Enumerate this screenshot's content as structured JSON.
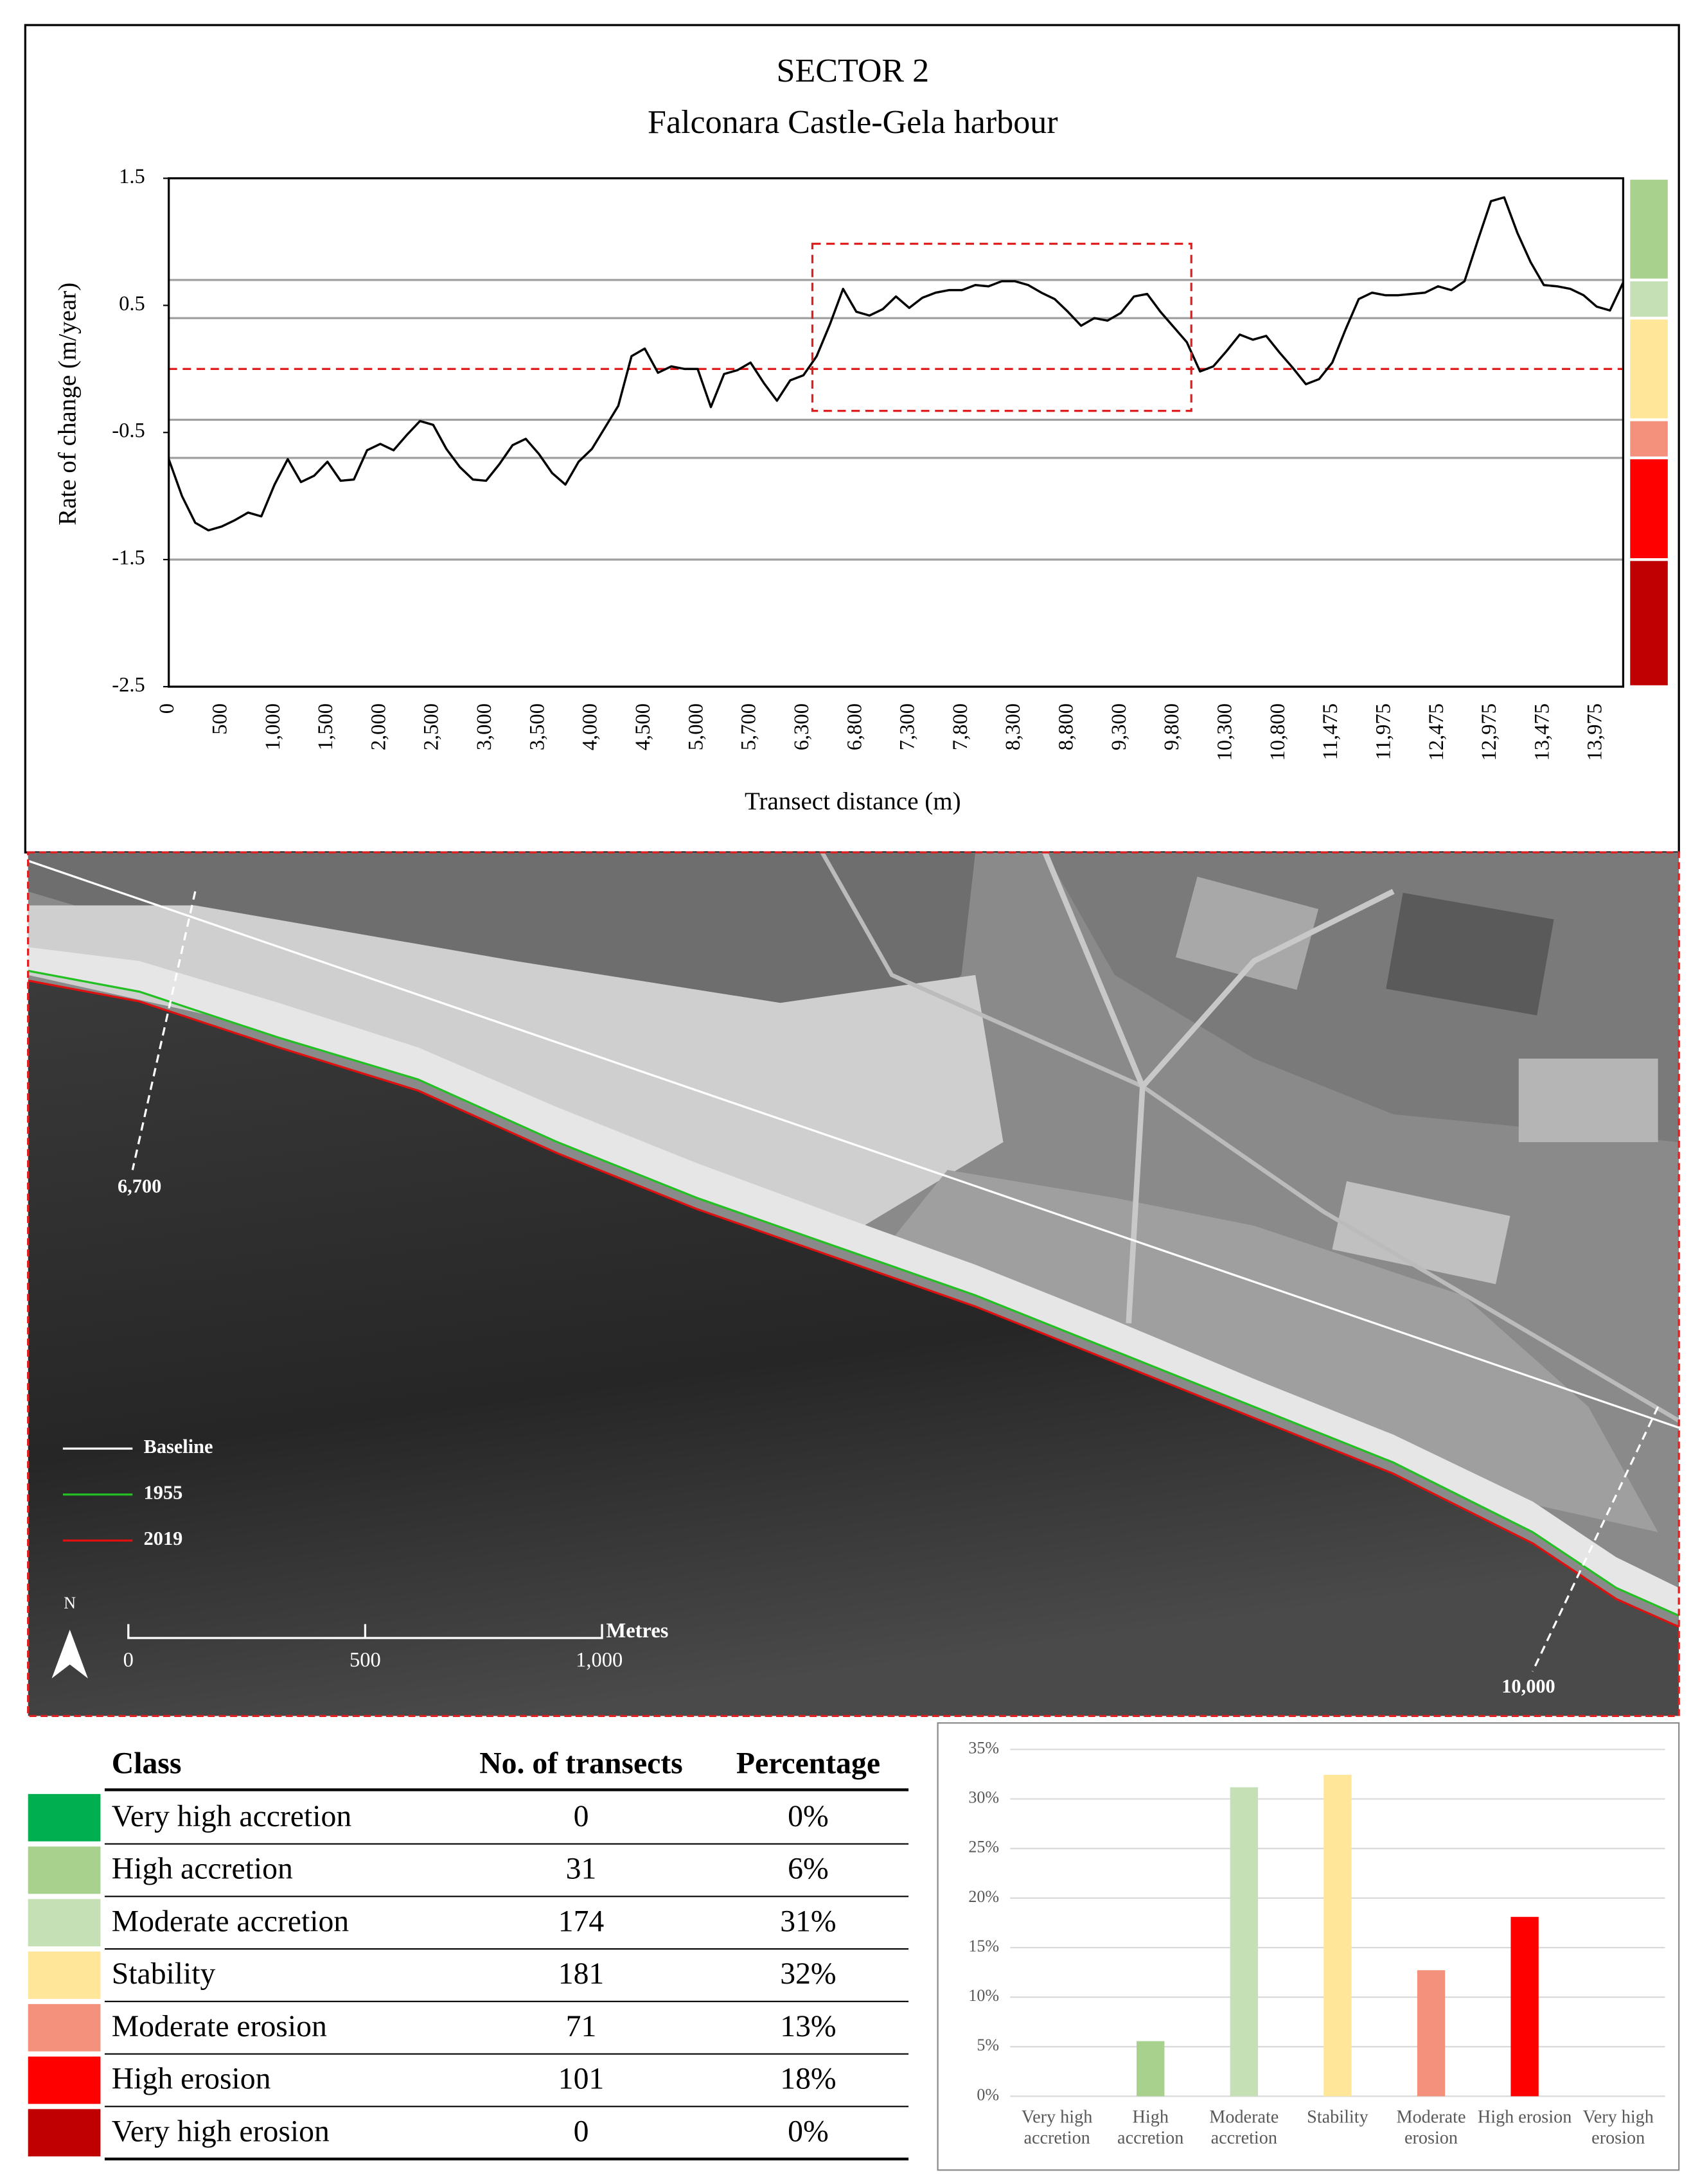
{
  "chart_data": [
    {
      "type": "line",
      "title": "SECTOR 2",
      "subtitle": "Falconara Castle-Gela harbour",
      "x_label": "Transect distance (m)",
      "y_label": "Rate of change (m/year)",
      "categories": [
        "0",
        null,
        null,
        null,
        "500",
        null,
        null,
        null,
        "1,000",
        null,
        null,
        null,
        "1,500",
        null,
        null,
        null,
        "2,000",
        null,
        null,
        null,
        "2,500",
        null,
        null,
        null,
        "3,000",
        null,
        null,
        null,
        "3,500",
        null,
        null,
        null,
        "4,000",
        null,
        null,
        null,
        "4,500",
        null,
        null,
        null,
        "5,000",
        null,
        null,
        null,
        "5,700",
        null,
        null,
        null,
        "6,300",
        null,
        null,
        null,
        "6,800",
        null,
        null,
        null,
        "7,300",
        null,
        null,
        null,
        "7,800",
        null,
        null,
        null,
        "8,300",
        null,
        null,
        null,
        "8,800",
        null,
        null,
        null,
        "9,300",
        null,
        null,
        null,
        "9,800",
        null,
        null,
        null,
        "10,300",
        null,
        null,
        null,
        "10,800",
        null,
        null,
        null,
        "11,475",
        null,
        null,
        null,
        "11,975",
        null,
        null,
        null,
        "12,475",
        null,
        null,
        null,
        "12,975",
        null,
        null,
        null,
        "13,475",
        null,
        null,
        null,
        "13,975",
        null,
        null
      ],
      "values": [
        -0.71,
        -1.0,
        -1.21,
        -1.27,
        -1.24,
        -1.19,
        -1.13,
        -1.16,
        -0.91,
        -0.71,
        -0.89,
        -0.84,
        -0.73,
        -0.88,
        -0.87,
        -0.64,
        -0.59,
        -0.64,
        -0.52,
        -0.41,
        -0.44,
        -0.63,
        -0.77,
        -0.87,
        -0.88,
        -0.75,
        -0.6,
        -0.55,
        -0.67,
        -0.82,
        -0.91,
        -0.73,
        -0.63,
        -0.46,
        -0.29,
        0.1,
        0.16,
        -0.03,
        0.02,
        0.0,
        0.0,
        -0.3,
        -0.04,
        -0.01,
        0.05,
        -0.11,
        -0.25,
        -0.09,
        -0.05,
        0.1,
        0.35,
        0.63,
        0.45,
        0.42,
        0.47,
        0.57,
        0.48,
        0.56,
        0.6,
        0.62,
        0.62,
        0.66,
        0.65,
        0.69,
        0.69,
        0.66,
        0.6,
        0.55,
        0.45,
        0.34,
        0.4,
        0.38,
        0.44,
        0.57,
        0.59,
        0.45,
        0.33,
        0.21,
        -0.02,
        0.02,
        0.14,
        0.27,
        0.23,
        0.26,
        0.13,
        0.01,
        -0.12,
        -0.08,
        0.05,
        0.31,
        0.55,
        0.6,
        0.58,
        0.58,
        0.59,
        0.6,
        0.65,
        0.62,
        0.69,
        1.01,
        1.32,
        1.35,
        1.07,
        0.84,
        0.66,
        0.65,
        0.63,
        0.58,
        0.49,
        0.46,
        0.68
      ],
      "color": "#000000",
      "ylim": [
        -2.5,
        1.5
      ],
      "yticks": [
        -2.5,
        -1.5,
        -0.5,
        0.5,
        1.5
      ],
      "hlines": [
        0.7,
        0.4,
        -0.4,
        -0.7,
        -1.5
      ],
      "reference_line": 0,
      "class_colors": [
        "#a9d18e",
        "#c5e0b4",
        "#ffe699",
        "#f4917c",
        "#ff0000",
        "#c00000"
      ]
    },
    {
      "type": "bar",
      "categories": [
        "Very high accretion",
        "High accretion",
        "Moderate accretion",
        "Stability",
        "Moderate erosion",
        "High erosion",
        "Very high erosion"
      ],
      "values": [
        0,
        5.56,
        31.18,
        32.44,
        12.72,
        18.1,
        0
      ],
      "colors": [
        "#00b050",
        "#a9d18e",
        "#c5e0b4",
        "#ffe699",
        "#f4917c",
        "#ff0000",
        "#c00000"
      ],
      "ylim": [
        0,
        35
      ],
      "yticks": [
        {
          "value": 0,
          "label": "0%"
        },
        {
          "value": 5,
          "label": "5%"
        },
        {
          "value": 10,
          "label": "10%"
        },
        {
          "value": 15,
          "label": "15%"
        },
        {
          "value": 20,
          "label": "20%"
        },
        {
          "value": 25,
          "label": "25%"
        },
        {
          "value": 30,
          "label": "30%"
        },
        {
          "value": 35,
          "label": "35%"
        }
      ],
      "grid": true
    }
  ],
  "map": {
    "transect_labels": [
      "6,700",
      "10,000"
    ],
    "legend": [
      {
        "name": "Baseline",
        "color": "#ffffff"
      },
      {
        "name": "1955",
        "color": "#22c022"
      },
      {
        "name": "2019",
        "color": "#e01010"
      }
    ],
    "scale_labels": [
      "0",
      "500",
      "1,000"
    ],
    "scale_unit": "Metres",
    "north": "N"
  },
  "table": {
    "header": [
      "Class",
      "No. of transects",
      "Percentage"
    ],
    "rows": [
      [
        "Very high accretion",
        "0",
        "0%"
      ],
      [
        "High accretion",
        "31",
        "6%"
      ],
      [
        "Moderate accretion",
        "174",
        "31%"
      ],
      [
        "Stability",
        "181",
        "32%"
      ],
      [
        "Moderate erosion",
        "71",
        "13%"
      ],
      [
        "High erosion",
        "101",
        "18%"
      ],
      [
        "Very high erosion",
        "0",
        "0%"
      ]
    ],
    "row_colors": [
      "#00b050",
      "#a9d18e",
      "#c5e0b4",
      "#ffe699",
      "#f4917c",
      "#ff0000",
      "#c00000"
    ]
  }
}
